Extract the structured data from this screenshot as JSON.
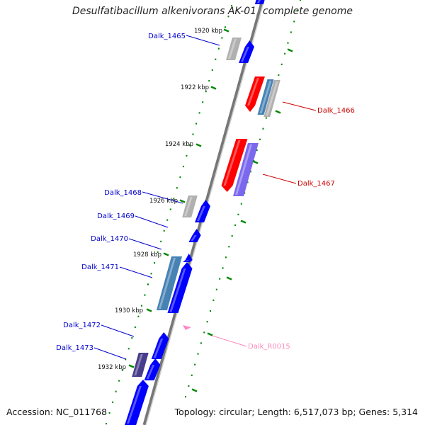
{
  "title": "Desulfatibacillum alkenivorans AK-01, complete genome",
  "footer": {
    "accession": "Accession: NC_011768",
    "summary": "Topology: circular; Length: 6,517,073 bp; Genes: 5,314"
  },
  "ticks": [
    "1920 kbp",
    "1922 kbp",
    "1924 kbp",
    "1926 kbp",
    "1928 kbp",
    "1930 kbp",
    "1932 kbp"
  ],
  "genes": [
    {
      "label": "Dalk_1465",
      "color": "#0000cc"
    },
    {
      "label": "Dalk_1466",
      "color": "#cc0000"
    },
    {
      "label": "Dalk_1467",
      "color": "#cc0000"
    },
    {
      "label": "Dalk_1468",
      "color": "#0000cc"
    },
    {
      "label": "Dalk_1469",
      "color": "#0000cc"
    },
    {
      "label": "Dalk_1470",
      "color": "#0000cc"
    },
    {
      "label": "Dalk_1471",
      "color": "#0000cc"
    },
    {
      "label": "Dalk_1472",
      "color": "#0000cc"
    },
    {
      "label": "Dalk_1473",
      "color": "#0000cc"
    },
    {
      "label": "Dalk_R0015",
      "color": "#ff88bb"
    }
  ],
  "colors": {
    "forward_strand": "#0000ff",
    "reverse_strand": "#ff0000",
    "backbone": "#888888",
    "ruler_dots": "#008800",
    "gray_feature": "#b0b0b0",
    "steelblue_feature": "#4682b4",
    "slate_feature": "#7b68ee",
    "navy_feature": "#483d8b",
    "rna_feature": "#ff88cc"
  }
}
